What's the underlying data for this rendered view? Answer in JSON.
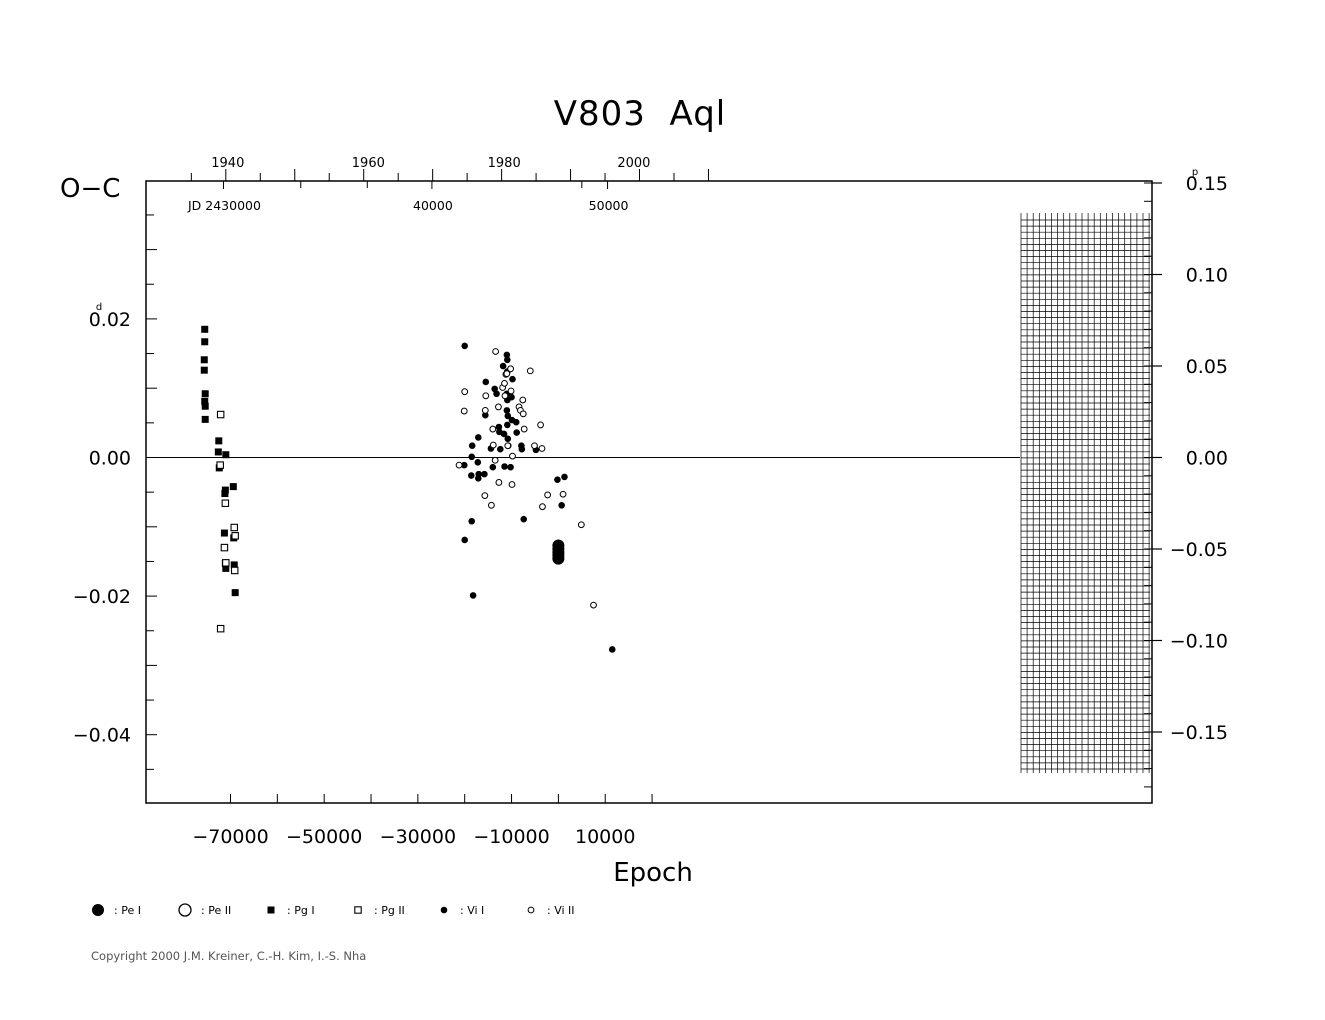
{
  "chart_data": {
    "type": "scatter",
    "title": "V803  Aql",
    "ylabel": "O−C",
    "xlabel": "Epoch",
    "xlim": [
      -80000,
      27000
    ],
    "ylim": [
      -0.05,
      0.04
    ],
    "xticks": [
      {
        "value": -70000,
        "label": "−70000"
      },
      {
        "value": -50000,
        "label": "−50000"
      },
      {
        "value": -30000,
        "label": "−30000"
      },
      {
        "value": -10000,
        "label": "−10000"
      },
      {
        "value": 10000,
        "label": "10000"
      }
    ],
    "yticks": [
      {
        "value": 0.02,
        "label": "0.02",
        "sup": "d"
      },
      {
        "value": 0.0,
        "label": "0.00"
      },
      {
        "value": -0.02,
        "label": "−0.02"
      },
      {
        "value": -0.04,
        "label": "−0.04"
      }
    ],
    "phase_ticks": [
      {
        "value": 0.15,
        "label": "0.15",
        "sup": "p"
      },
      {
        "value": 0.1,
        "label": "0.10"
      },
      {
        "value": 0.05,
        "label": "0.05"
      },
      {
        "value": 0.0,
        "label": "0.00"
      },
      {
        "value": -0.05,
        "label": "−0.05"
      },
      {
        "value": -0.1,
        "label": "−0.10"
      },
      {
        "value": -0.15,
        "label": "−0.15"
      }
    ],
    "year_ticks": [
      {
        "year": 1940,
        "label": "1940",
        "labeled": true,
        "epoch": -71000
      },
      {
        "year": 1960,
        "label": "1960",
        "labeled": true,
        "epoch": -41000
      },
      {
        "year": 1980,
        "label": "1980",
        "labeled": true,
        "epoch": -12000
      },
      {
        "year": 2000,
        "label": "2000",
        "labeled": true,
        "epoch": 15700
      }
    ],
    "jd_labels": [
      {
        "label": "JD  2430000",
        "epoch": -71500
      },
      {
        "label": "40000",
        "epoch": -27000
      },
      {
        "label": "50000",
        "epoch": 10500
      }
    ],
    "legend": [
      {
        "symbol": "big-filled-circle",
        "label": ": Pe I"
      },
      {
        "symbol": "big-open-circle",
        "label": ": Pe II"
      },
      {
        "symbol": "filled-square",
        "label": ": Pg I"
      },
      {
        "symbol": "open-square",
        "label": ": Pg II"
      },
      {
        "symbol": "small-filled-circle",
        "label": ": Vi I"
      },
      {
        "symbol": "small-open-circle",
        "label": ": Vi II"
      }
    ],
    "grid": false,
    "hatched_region": [
      15000,
      26000
    ],
    "series": [
      {
        "name": "Pe I",
        "symbol": "big-filled-circle",
        "points": [
          [
            0,
            -0.0127
          ],
          [
            0,
            -0.0132
          ],
          [
            0,
            -0.0137
          ],
          [
            0,
            -0.0141
          ],
          [
            0,
            -0.0146
          ]
        ]
      },
      {
        "name": "Pe II",
        "symbol": "big-open-circle",
        "points": []
      },
      {
        "name": "Pg I",
        "symbol": "filled-square",
        "points": [
          [
            -75500,
            0.0185
          ],
          [
            -75500,
            0.0167
          ],
          [
            -75600,
            0.0141
          ],
          [
            -75600,
            0.0126
          ],
          [
            -75400,
            0.0092
          ],
          [
            -75500,
            0.0081
          ],
          [
            -75400,
            0.0074
          ],
          [
            -75400,
            0.0055
          ],
          [
            -72500,
            0.0024
          ],
          [
            -72600,
            0.0008
          ],
          [
            -72400,
            -0.0015
          ],
          [
            -71000,
            0.0004
          ],
          [
            -71100,
            -0.0047
          ],
          [
            -71200,
            -0.0052
          ],
          [
            -71300,
            -0.0109
          ],
          [
            -71100,
            -0.0153
          ],
          [
            -71000,
            -0.016
          ],
          [
            -69400,
            -0.0042
          ],
          [
            -69300,
            -0.0116
          ],
          [
            -69200,
            -0.0155
          ],
          [
            -69000,
            -0.0195
          ]
        ]
      },
      {
        "name": "Pg II",
        "symbol": "open-square",
        "points": [
          [
            -72100,
            0.0062
          ],
          [
            -72200,
            -0.0011
          ],
          [
            -71100,
            -0.0066
          ],
          [
            -71300,
            -0.013
          ],
          [
            -71000,
            -0.0152
          ],
          [
            -69200,
            -0.0101
          ],
          [
            -69000,
            -0.0113
          ],
          [
            -69100,
            -0.0163
          ],
          [
            -72100,
            -0.0247
          ]
        ]
      },
      {
        "name": "Vi I",
        "symbol": "small-filled-circle",
        "points": [
          [
            -20000,
            0.0161
          ],
          [
            -20100,
            -0.0011
          ],
          [
            -20000,
            -0.0119
          ],
          [
            -18400,
            0.0017
          ],
          [
            -18500,
            0.0001
          ],
          [
            -18600,
            -0.0026
          ],
          [
            -18500,
            -0.0092
          ],
          [
            -18200,
            -0.0199
          ],
          [
            -17100,
            0.0029
          ],
          [
            -17200,
            -0.0007
          ],
          [
            -17000,
            -0.0024
          ],
          [
            -17100,
            -0.003
          ],
          [
            -15500,
            0.0109
          ],
          [
            -15600,
            0.0061
          ],
          [
            -15800,
            -0.0024
          ],
          [
            -14400,
            0.0013
          ],
          [
            -14000,
            -0.0014
          ],
          [
            -13600,
            0.0099
          ],
          [
            -13200,
            0.0092
          ],
          [
            -12700,
            0.0044
          ],
          [
            -12600,
            0.0037
          ],
          [
            -12400,
            0.0012
          ],
          [
            -11800,
            0.0132
          ],
          [
            -11600,
            0.0034
          ],
          [
            -11500,
            -0.0013
          ],
          [
            -11000,
            0.0148
          ],
          [
            -10900,
            0.0141
          ],
          [
            -10900,
            0.0124
          ],
          [
            -11000,
            0.0092
          ],
          [
            -10900,
            0.0083
          ],
          [
            -11000,
            0.0068
          ],
          [
            -10800,
            0.006
          ],
          [
            -10900,
            0.0047
          ],
          [
            -10800,
            0.0027
          ],
          [
            -10700,
            0.0017
          ],
          [
            -10000,
            0.0087
          ],
          [
            -9900,
            0.0054
          ],
          [
            -10200,
            -0.0014
          ],
          [
            -9800,
            0.0113
          ],
          [
            -9000,
            0.0051
          ],
          [
            -8900,
            0.0036
          ],
          [
            -7900,
            0.0017
          ],
          [
            -7800,
            0.0012
          ],
          [
            -7400,
            -0.0089
          ],
          [
            -4800,
            0.0011
          ],
          [
            -200,
            -0.0032
          ],
          [
            700,
            -0.0069
          ],
          [
            1300,
            -0.0028
          ],
          [
            11500,
            -0.0277
          ]
        ]
      },
      {
        "name": "Vi II",
        "symbol": "small-open-circle",
        "points": [
          [
            -21200,
            -0.0011
          ],
          [
            -20000,
            0.0095
          ],
          [
            -20100,
            0.0067
          ],
          [
            -15500,
            0.0089
          ],
          [
            -15600,
            0.0068
          ],
          [
            -15700,
            -0.0055
          ],
          [
            -14000,
            0.0041
          ],
          [
            -13900,
            0.0018
          ],
          [
            -14300,
            -0.0069
          ],
          [
            -13400,
            0.0153
          ],
          [
            -13500,
            -0.0004
          ],
          [
            -12700,
            -0.0036
          ],
          [
            -12800,
            0.0073
          ],
          [
            -11900,
            0.0101
          ],
          [
            -11500,
            0.0107
          ],
          [
            -11400,
            0.0089
          ],
          [
            -11200,
            0.012
          ],
          [
            -11000,
            0.0121
          ],
          [
            -10800,
            0.0017
          ],
          [
            -10200,
            0.0128
          ],
          [
            -10100,
            0.0096
          ],
          [
            -9800,
            0.0002
          ],
          [
            -9900,
            -0.0039
          ],
          [
            -8400,
            0.0073
          ],
          [
            -8100,
            0.0068
          ],
          [
            -7600,
            0.0083
          ],
          [
            -7500,
            0.0063
          ],
          [
            -7300,
            0.0041
          ],
          [
            -6000,
            0.0125
          ],
          [
            -5100,
            0.0017
          ],
          [
            -3800,
            0.0047
          ],
          [
            -3500,
            0.0013
          ],
          [
            -3400,
            -0.0071
          ],
          [
            -2300,
            -0.0054
          ],
          [
            1000,
            -0.0053
          ],
          [
            4900,
            -0.0097
          ],
          [
            7500,
            -0.0213
          ]
        ]
      }
    ]
  },
  "page": {
    "copyright": "Copyright 2000 J.M. Kreiner, C.-H. Kim, I.-S. Nha"
  }
}
